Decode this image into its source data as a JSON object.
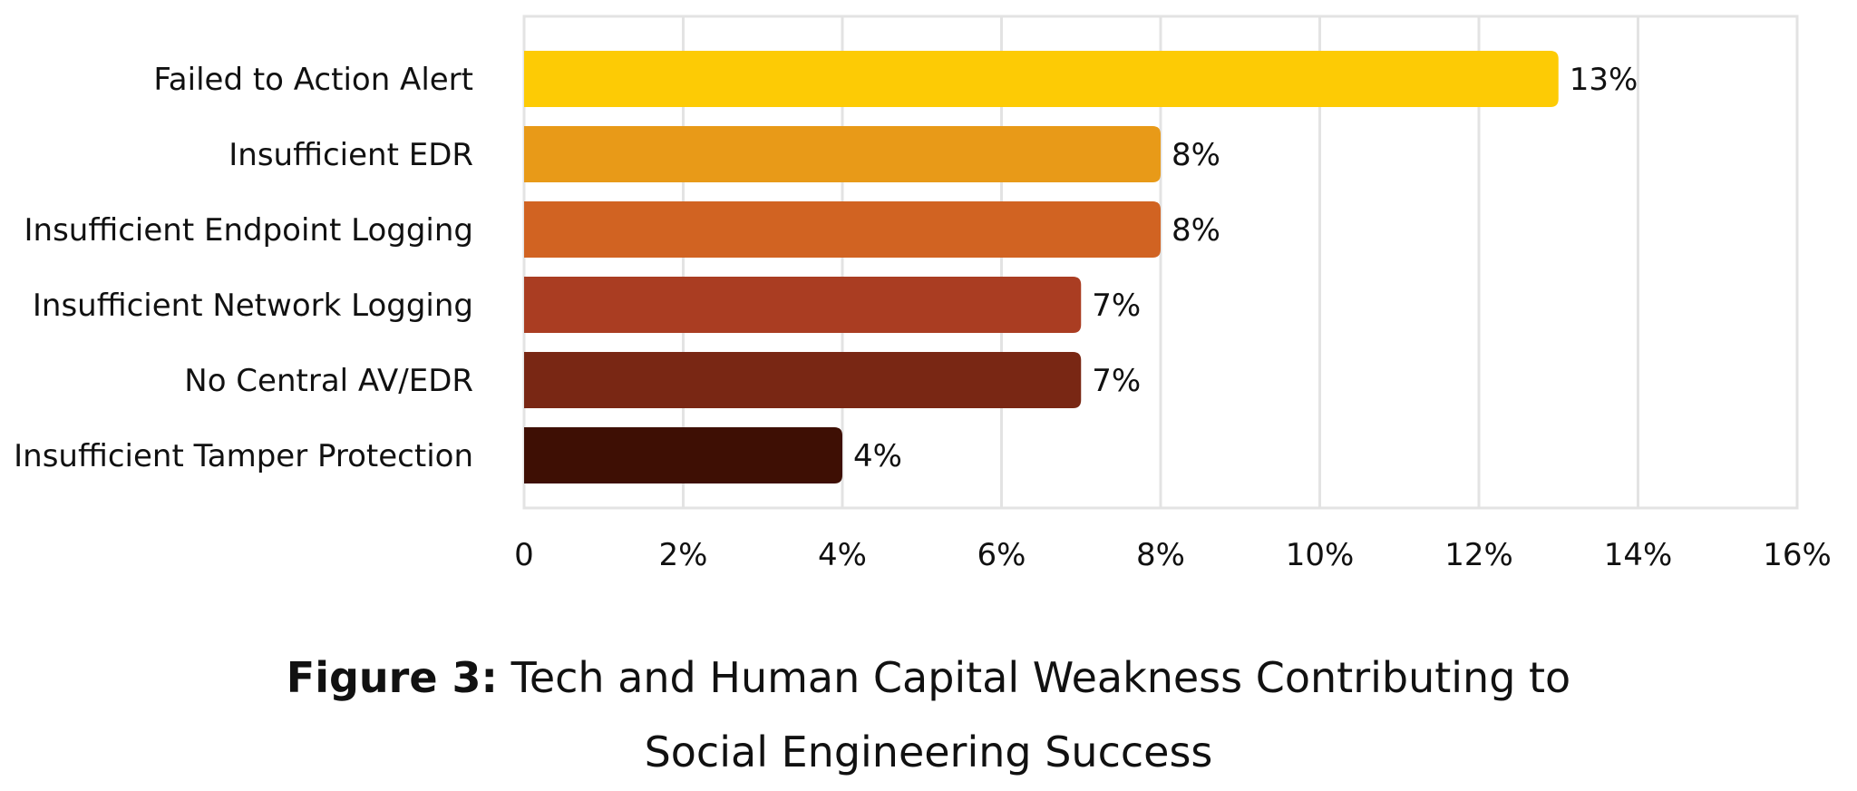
{
  "chart_data": {
    "type": "bar",
    "orientation": "horizontal",
    "categories": [
      "Failed to Action Alert",
      "Insufficient EDR",
      "Insufficient Endpoint Logging",
      "Insufficient Network Logging",
      "No Central AV/EDR",
      "Insufficient Tamper Protection"
    ],
    "values": [
      13,
      8,
      8,
      7,
      7,
      4
    ],
    "data_labels": [
      "13%",
      "8%",
      "8%",
      "7%",
      "7%",
      "4%"
    ],
    "colors": [
      "#FDCB05",
      "#E89A18",
      "#D16322",
      "#AA3D22",
      "#792714",
      "#3E0F04"
    ],
    "xlim": [
      0,
      16
    ],
    "x_ticks": [
      0,
      2,
      4,
      6,
      8,
      10,
      12,
      14,
      16
    ],
    "x_tick_labels": [
      "0",
      "2%",
      "4%",
      "6%",
      "8%",
      "10%",
      "12%",
      "14%",
      "16%"
    ],
    "grid": true,
    "grid_color": "#E3E3E3",
    "title_prefix": "Figure 3:",
    "title_line1": "Tech and Human Capital Weakness Contributing to",
    "title_line2": "Social Engineering Success"
  }
}
